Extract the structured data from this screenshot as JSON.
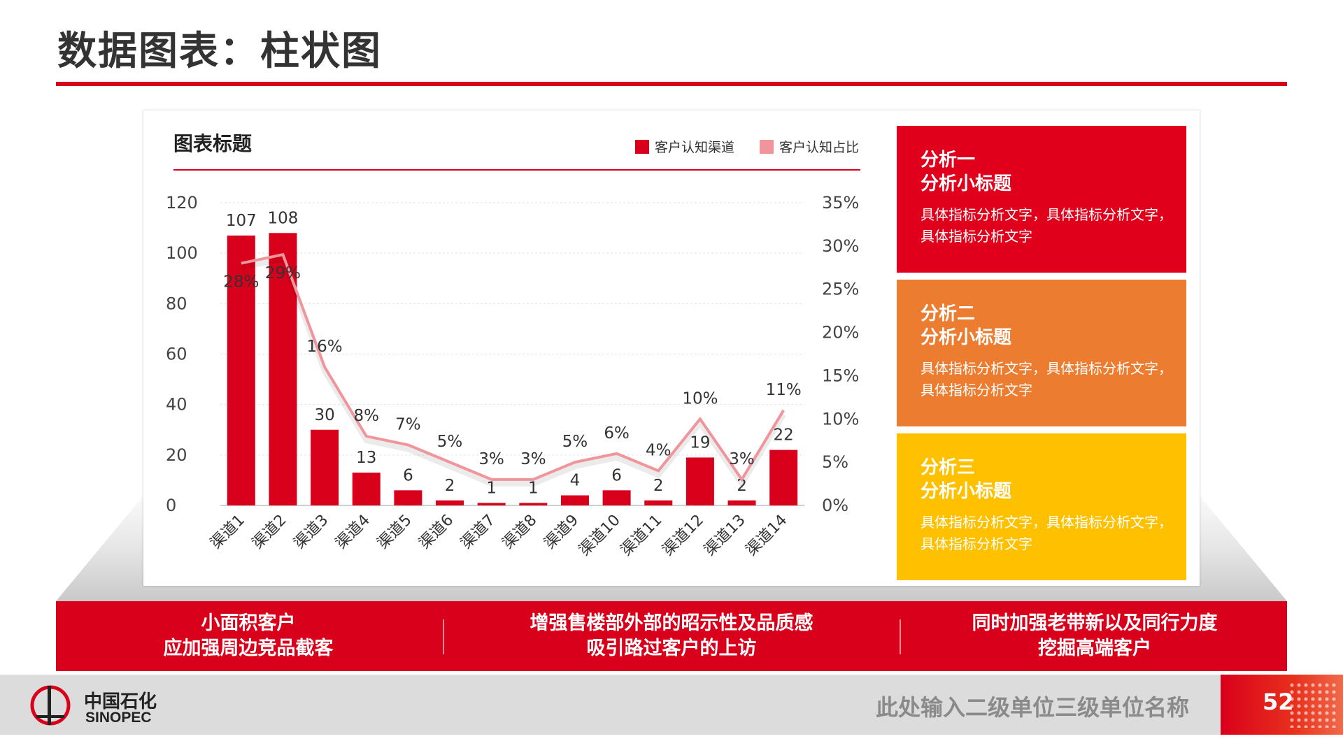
{
  "page": {
    "title": "数据图表：柱状图",
    "page_number": "52"
  },
  "chart_header": {
    "title": "图表标题"
  },
  "legend": [
    {
      "label": "客户认知渠道",
      "color": "#d9001b"
    },
    {
      "label": "客户认知占比",
      "color": "#f0959b"
    }
  ],
  "chart_data": {
    "type": "bar",
    "title": "图表标题",
    "categories": [
      "渠道1",
      "渠道2",
      "渠道3",
      "渠道4",
      "渠道5",
      "渠道6",
      "渠道7",
      "渠道8",
      "渠道9",
      "渠道10",
      "渠道11",
      "渠道12",
      "渠道13",
      "渠道14"
    ],
    "series": [
      {
        "name": "客户认知渠道",
        "type": "bar",
        "axis": "left",
        "values": [
          107,
          108,
          30,
          13,
          6,
          2,
          1,
          1,
          4,
          6,
          2,
          19,
          2,
          22
        ],
        "color": "#d9001b"
      },
      {
        "name": "客户认知占比",
        "type": "line",
        "axis": "right",
        "values": [
          28,
          29,
          16,
          8,
          7,
          5,
          3,
          3,
          5,
          6,
          4,
          10,
          3,
          11
        ],
        "color": "#f0959b"
      }
    ],
    "left_axis": {
      "ylim": [
        0,
        120
      ],
      "ticks": [
        0,
        20,
        40,
        60,
        80,
        100,
        120
      ]
    },
    "right_axis": {
      "ylim": [
        0,
        35
      ],
      "ticks": [
        "0%",
        "5%",
        "10%",
        "15%",
        "20%",
        "25%",
        "30%",
        "35%"
      ]
    },
    "grid": true,
    "legend_position": "top-right"
  },
  "cards": [
    {
      "heading": "分析一",
      "subheading": "分析小标题",
      "body": "具体指标分析文字，具体指标分析文字，具体指标分析文字",
      "color": "#e0001b"
    },
    {
      "heading": "分析二",
      "subheading": "分析小标题",
      "body": "具体指标分析文字，具体指标分析文字，具体指标分析文字",
      "color": "#ec7c30"
    },
    {
      "heading": "分析三",
      "subheading": "分析小标题",
      "body": "具体指标分析文字，具体指标分析文字，具体指标分析文字",
      "color": "#ffc000"
    }
  ],
  "banner": [
    {
      "line1": "小面积客户",
      "line2": "应加强周边竞品截客"
    },
    {
      "line1": "增强售楼部外部的昭示性及品质感",
      "line2": "吸引路过客户的上访"
    },
    {
      "line1": "同时加强老带新以及同行力度",
      "line2": "挖掘高端客户"
    }
  ],
  "footer": {
    "org_name": "此处输入二级单位三级单位名称",
    "logo_cn": "中国石化",
    "logo_en": "SINOPEC"
  }
}
